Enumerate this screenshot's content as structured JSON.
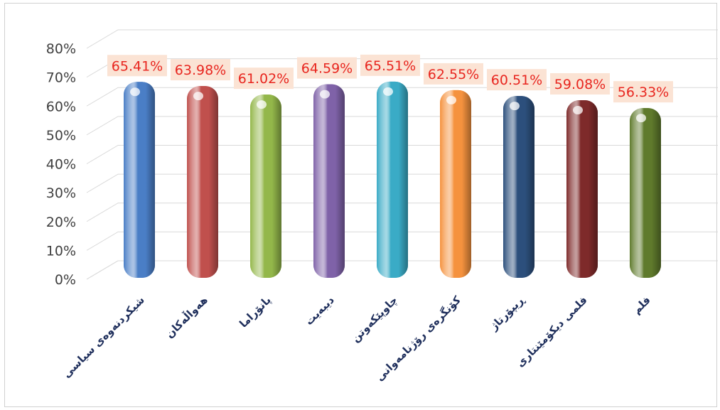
{
  "chart_data": {
    "type": "bar",
    "title": "",
    "xlabel": "",
    "ylabel": "",
    "categories": [
      "شیکردنەوەی سیاسی",
      "هەواڵەکان",
      "پانۆراما",
      "دیبەیت",
      "چاوپێکەوتن",
      "کۆنگرەی رۆژنامەوانی",
      "ڕیپۆرتاژ",
      "فلمی دیکۆمێنتاری",
      "فلم"
    ],
    "values": [
      65.41,
      63.98,
      61.02,
      64.59,
      65.51,
      62.55,
      60.51,
      59.08,
      56.33
    ],
    "data_labels": [
      "65.41%",
      "63.98%",
      "61.02%",
      "64.59%",
      "65.51%",
      "62.55%",
      "60.51%",
      "59.08%",
      "56.33%"
    ],
    "ylim": [
      0,
      80
    ],
    "yticks": [
      "0%",
      "10%",
      "20%",
      "30%",
      "40%",
      "50%",
      "60%",
      "70%",
      "80%"
    ],
    "grid": true,
    "legend": "none",
    "colors": [
      "#4a7ec6",
      "#c0504d",
      "#93b74a",
      "#7f62a8",
      "#3aabc6",
      "#f5923e",
      "#2c4f7c",
      "#7e2a2a",
      "#5f7a2c"
    ],
    "label_background": "#fbe3d4",
    "label_color": "#e8261f"
  }
}
